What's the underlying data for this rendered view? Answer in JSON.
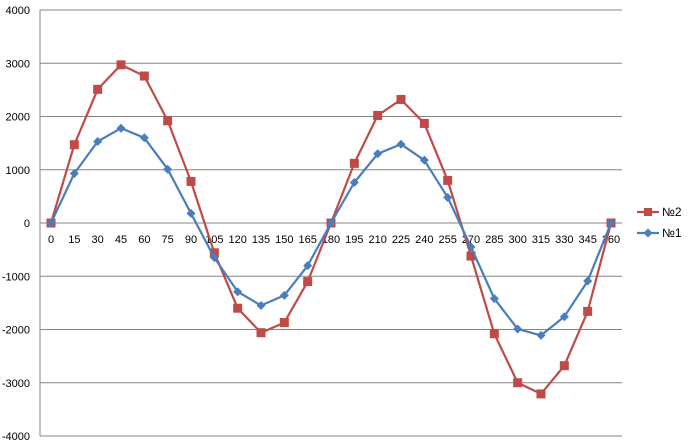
{
  "chart_data": {
    "type": "line",
    "title": "",
    "xlabel": "",
    "ylabel": "",
    "x": [
      0,
      15,
      30,
      45,
      60,
      75,
      90,
      105,
      120,
      135,
      150,
      165,
      180,
      195,
      210,
      225,
      240,
      255,
      270,
      285,
      300,
      315,
      330,
      345,
      360
    ],
    "ylim": [
      -4000,
      4000
    ],
    "yticks": [
      -4000,
      -3000,
      -2000,
      -1000,
      0,
      1000,
      2000,
      3000,
      4000
    ],
    "grid": true,
    "legend_position": "right",
    "series": [
      {
        "name": "№2",
        "color": "#be4b48",
        "marker": "square",
        "values": [
          0,
          1470,
          2510,
          2970,
          2760,
          1920,
          780,
          -560,
          -1600,
          -2060,
          -1870,
          -1100,
          0,
          1120,
          2020,
          2320,
          1870,
          800,
          -620,
          -2080,
          -3000,
          -3210,
          -2680,
          -1660,
          0
        ]
      },
      {
        "name": "№1",
        "color": "#4a7ebb",
        "marker": "diamond",
        "values": [
          0,
          930,
          1530,
          1780,
          1600,
          1010,
          180,
          -650,
          -1290,
          -1550,
          -1360,
          -800,
          0,
          760,
          1300,
          1480,
          1180,
          480,
          -450,
          -1420,
          -1990,
          -2110,
          -1760,
          -1090,
          0
        ]
      }
    ]
  }
}
